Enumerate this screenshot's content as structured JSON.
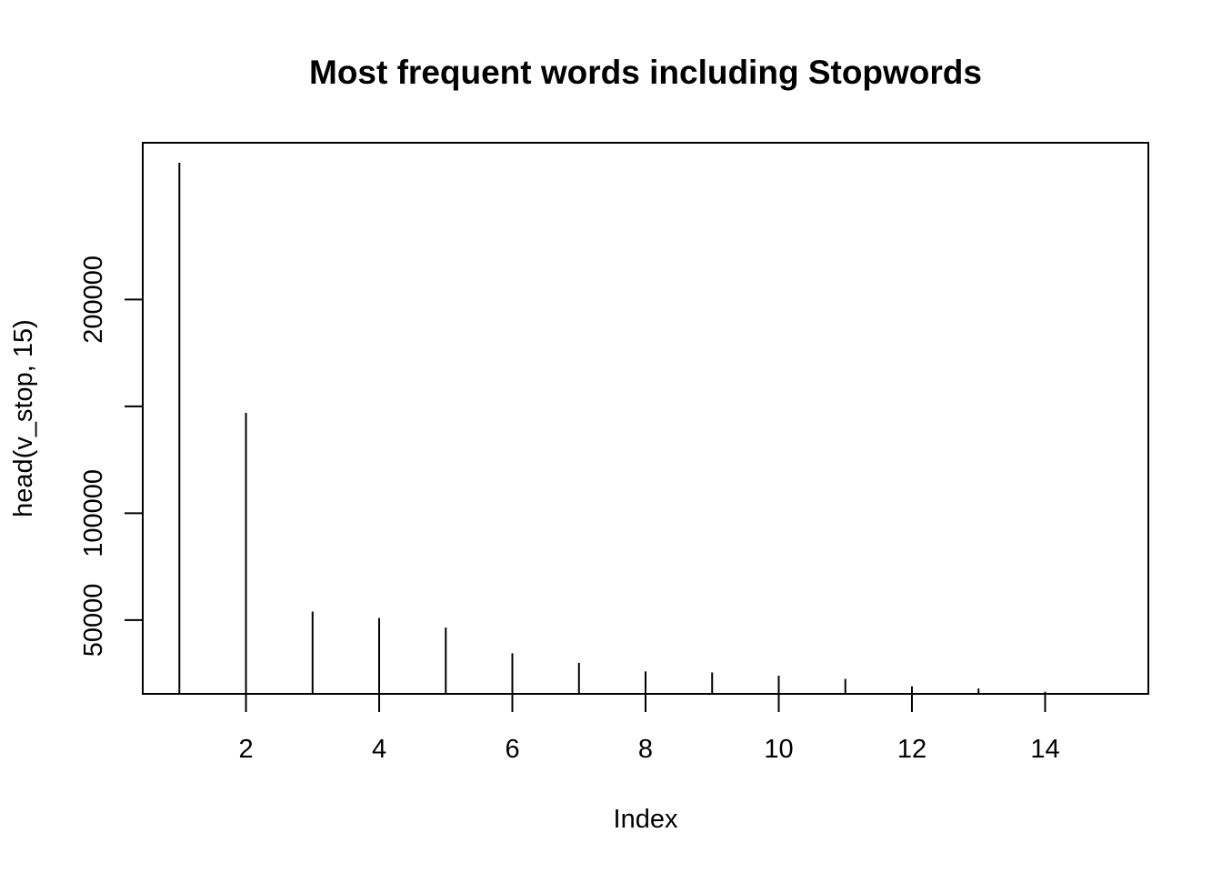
{
  "chart_data": {
    "type": "bar",
    "title": "Most frequent words including Stopwords",
    "xlabel": "Index",
    "ylabel": "head(v_stop, 15)",
    "x": [
      1,
      2,
      3,
      4,
      5,
      6,
      7,
      8,
      9,
      10,
      11,
      12,
      13,
      14,
      15
    ],
    "values": [
      264000,
      147000,
      54000,
      51000,
      46500,
      34500,
      30000,
      26000,
      25500,
      24000,
      22500,
      19000,
      18000,
      16500,
      15500
    ],
    "xlim": [
      0.45,
      15.55
    ],
    "ylim": [
      15500,
      264000
    ],
    "x_ticks": [
      2,
      4,
      6,
      8,
      10,
      12,
      14
    ],
    "x_tick_labels": [
      "2",
      "4",
      "6",
      "8",
      "10",
      "12",
      "14"
    ],
    "y_ticks": [
      50000,
      100000,
      150000,
      200000
    ],
    "y_tick_labels": [
      "50000",
      "100000",
      "",
      "200000"
    ],
    "grid": false,
    "legend": "none",
    "colors": {
      "line": "#000000",
      "background": "#ffffff"
    }
  }
}
